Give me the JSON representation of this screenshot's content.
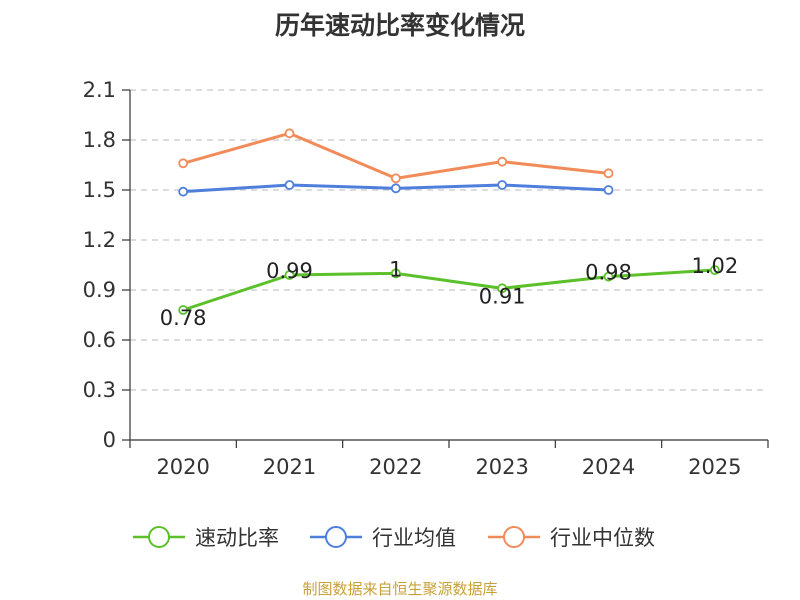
{
  "chart_data": {
    "type": "line",
    "title": "历年速动比率变化情况",
    "categories": [
      "2020",
      "2021",
      "2022",
      "2023",
      "2024",
      "2025"
    ],
    "ylim": [
      0,
      2.1
    ],
    "yticks": [
      "0",
      "0.3",
      "0.6",
      "0.9",
      "1.2",
      "1.5",
      "1.8",
      "2.1"
    ],
    "grid": true,
    "legend_position": "bottom",
    "series": [
      {
        "name": "速动比率",
        "color": "#5cc02b",
        "values": [
          0.78,
          0.99,
          1.0,
          0.91,
          0.98,
          1.02
        ],
        "labels": [
          "0.78",
          "0.99",
          "1",
          "0.91",
          "0.98",
          "1.02"
        ]
      },
      {
        "name": "行业均值",
        "color": "#4f7fdc",
        "values": [
          1.49,
          1.53,
          1.51,
          1.53,
          1.5,
          null
        ]
      },
      {
        "name": "行业中位数",
        "color": "#f28b5a",
        "values": [
          1.66,
          1.84,
          1.57,
          1.67,
          1.6,
          null
        ]
      }
    ],
    "source": "制图数据来自恒生聚源数据库"
  }
}
